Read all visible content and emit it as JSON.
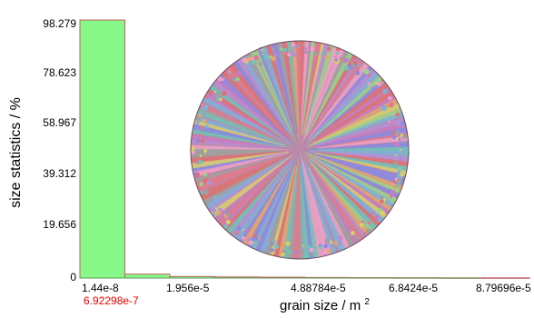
{
  "chart_data": {
    "type": "bar",
    "ylabel": "size statistics / %",
    "xlabel": "grain size / m",
    "xlabel_superscript": "2",
    "ylim": [
      0,
      98.279
    ],
    "y_ticks": [
      "98.279",
      "78.623",
      "58.967",
      "39.312",
      "19.656",
      "0"
    ],
    "x_ticks": [
      "1.44e-8",
      "1.956e-5",
      "4.88784e-5",
      "6.8424e-5",
      "8.79696e-5"
    ],
    "x_annotation": "6.92298e-7",
    "x_annotation_color": "#ff0000",
    "bar_color": "#88f888",
    "bar_outline_color": "#c06060",
    "axis_color": "#000000",
    "grid": false,
    "legend": "none",
    "series": [
      {
        "values": [
          98.279,
          1.5,
          0.6,
          0.4,
          0.3,
          0.2,
          0.15,
          0.1,
          0.08,
          0.06
        ]
      }
    ],
    "inset": {
      "kind": "circular grain microstructure image",
      "fill_palette": [
        "#e07a8c",
        "#c77dbf",
        "#7fb0d9",
        "#9ad38a",
        "#e4a66b",
        "#d8d06a",
        "#8a8ae0",
        "#e07070",
        "#6fc3b7",
        "#b58fd6",
        "#f0a0c8",
        "#a0a0a0"
      ]
    }
  }
}
